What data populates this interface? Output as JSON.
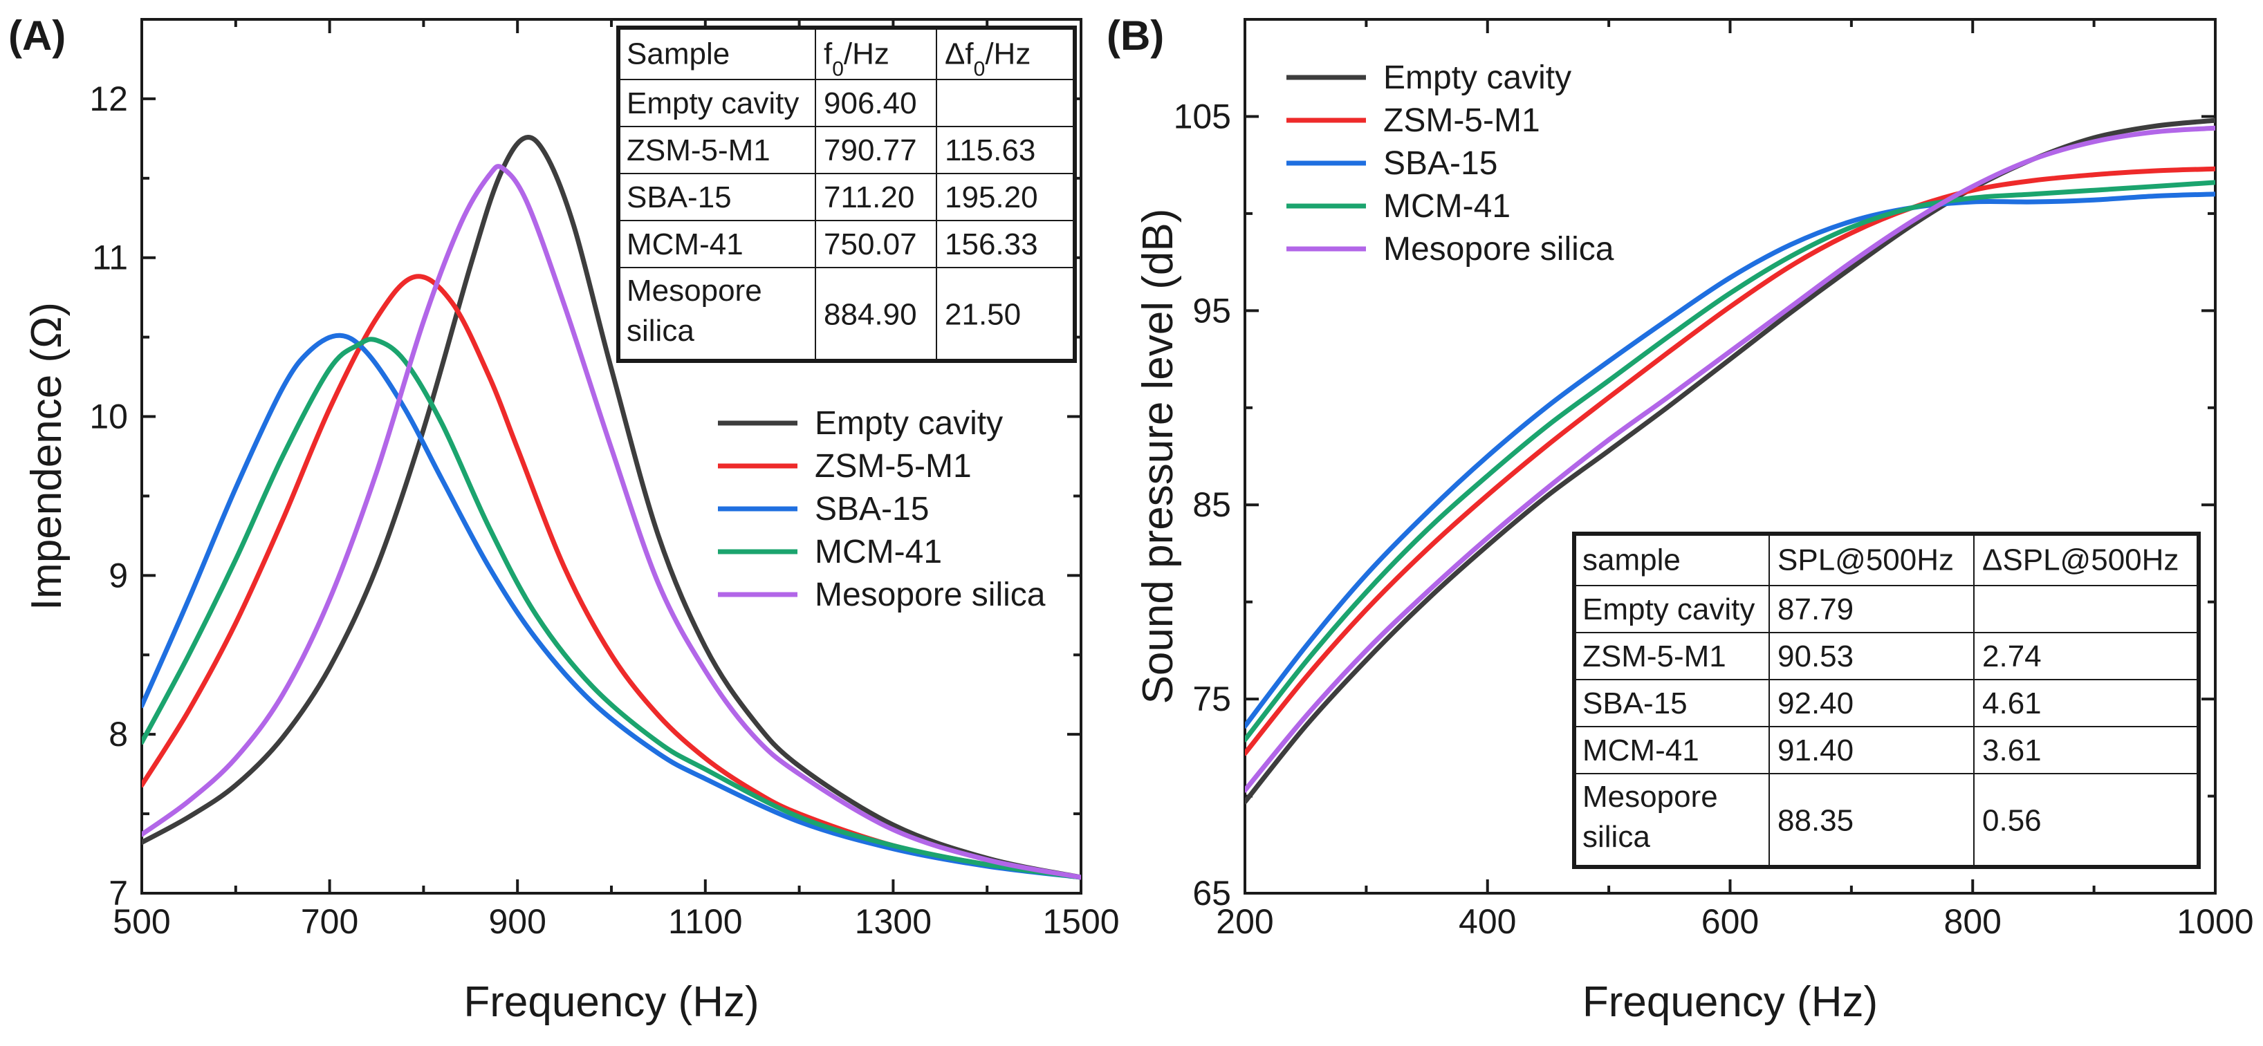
{
  "chart_data": [
    {
      "type": "line",
      "panel_label": "(A)",
      "xlabel": "Frequency (Hz)",
      "ylabel": "Impendence (Ω)",
      "xlim": [
        500,
        1500
      ],
      "ylim": [
        7,
        12.5
      ],
      "xticks": [
        500,
        700,
        900,
        1100,
        1300,
        1500
      ],
      "xtick_labels": [
        "500",
        "700",
        "900",
        "1100",
        "1300",
        "1500"
      ],
      "yticks": [
        7,
        8,
        9,
        10,
        11,
        12
      ],
      "ytick_labels": [
        "7",
        "8",
        "9",
        "10",
        "11",
        "12"
      ],
      "legend_position": "center-right",
      "series": [
        {
          "name": "Empty cavity",
          "color": "#3d3d3d",
          "x": [
            500,
            550,
            600,
            650,
            700,
            750,
            800,
            850,
            880,
            906.4,
            930,
            960,
            1000,
            1050,
            1100,
            1150,
            1200,
            1300,
            1400,
            1500
          ],
          "y": [
            7.32,
            7.48,
            7.68,
            7.98,
            8.42,
            9.05,
            9.92,
            10.95,
            11.5,
            11.75,
            11.65,
            11.2,
            10.3,
            9.25,
            8.55,
            8.1,
            7.8,
            7.43,
            7.22,
            7.1
          ]
        },
        {
          "name": "ZSM-5-M1",
          "color": "#ee2a2a",
          "x": [
            500,
            550,
            600,
            650,
            700,
            750,
            790.77,
            830,
            870,
            900,
            950,
            1000,
            1050,
            1100,
            1150,
            1200,
            1300,
            1400,
            1500
          ],
          "y": [
            7.68,
            8.15,
            8.7,
            9.35,
            10.05,
            10.62,
            10.88,
            10.72,
            10.25,
            9.8,
            9.05,
            8.5,
            8.12,
            7.85,
            7.65,
            7.5,
            7.3,
            7.18,
            7.1
          ]
        },
        {
          "name": "SBA-15",
          "color": "#1f6fe0",
          "x": [
            500,
            550,
            600,
            650,
            680,
            711.2,
            740,
            780,
            820,
            870,
            920,
            980,
            1050,
            1100,
            1200,
            1300,
            1400,
            1500
          ],
          "y": [
            8.18,
            8.85,
            9.55,
            10.18,
            10.42,
            10.51,
            10.4,
            10.05,
            9.6,
            9.05,
            8.6,
            8.2,
            7.88,
            7.72,
            7.45,
            7.28,
            7.17,
            7.1
          ]
        },
        {
          "name": "MCM-41",
          "color": "#1ba46e",
          "x": [
            500,
            550,
            600,
            650,
            700,
            730,
            750.07,
            780,
            820,
            870,
            920,
            980,
            1050,
            1100,
            1200,
            1300,
            1400,
            1500
          ],
          "y": [
            7.95,
            8.5,
            9.1,
            9.75,
            10.3,
            10.45,
            10.48,
            10.35,
            9.95,
            9.3,
            8.75,
            8.3,
            7.95,
            7.78,
            7.48,
            7.3,
            7.18,
            7.1
          ]
        },
        {
          "name": "Mesopore silica",
          "color": "#b266e8",
          "x": [
            500,
            550,
            600,
            650,
            700,
            750,
            800,
            840,
            870,
            884.9,
            910,
            950,
            1000,
            1050,
            1100,
            1150,
            1200,
            1300,
            1400,
            1500
          ],
          "y": [
            7.37,
            7.58,
            7.85,
            8.25,
            8.85,
            9.65,
            10.6,
            11.22,
            11.52,
            11.56,
            11.35,
            10.7,
            9.8,
            8.95,
            8.4,
            8.0,
            7.75,
            7.4,
            7.21,
            7.1
          ]
        }
      ],
      "table": {
        "headers": [
          "Sample",
          "f₀/Hz",
          "Δf₀/Hz"
        ],
        "rows": [
          [
            "Empty cavity",
            "906.40",
            ""
          ],
          [
            "ZSM-5-M1",
            "790.77",
            "115.63"
          ],
          [
            "SBA-15",
            "711.20",
            "195.20"
          ],
          [
            "MCM-41",
            "750.07",
            "156.33"
          ],
          [
            "Mesopore\nsilica",
            "884.90",
            "21.50"
          ]
        ]
      }
    },
    {
      "type": "line",
      "panel_label": "(B)",
      "xlabel": "Frequency (Hz)",
      "ylabel": "Sound pressure level (dB)",
      "xlim": [
        200,
        1000
      ],
      "ylim": [
        65,
        110
      ],
      "xticks": [
        200,
        400,
        600,
        800,
        1000
      ],
      "xtick_labels": [
        "200",
        "400",
        "600",
        "800",
        "1000"
      ],
      "yticks": [
        65,
        75,
        85,
        95,
        105
      ],
      "ytick_labels": [
        "65",
        "75",
        "85",
        "95",
        "105"
      ],
      "legend_position": "top-left",
      "series": [
        {
          "name": "Empty cavity",
          "color": "#3d3d3d",
          "x": [
            200,
            250,
            300,
            350,
            400,
            450,
            500,
            550,
            600,
            650,
            700,
            750,
            800,
            850,
            900,
            950,
            1000
          ],
          "y": [
            69.7,
            73.6,
            77.0,
            80.1,
            82.9,
            85.5,
            87.79,
            90.1,
            92.5,
            94.9,
            97.2,
            99.4,
            101.3,
            102.8,
            103.9,
            104.5,
            104.8
          ]
        },
        {
          "name": "ZSM-5-M1",
          "color": "#ee2a2a",
          "x": [
            200,
            250,
            300,
            350,
            400,
            450,
            500,
            550,
            600,
            650,
            700,
            750,
            800,
            850,
            900,
            950,
            1000
          ],
          "y": [
            72.2,
            76.1,
            79.6,
            82.7,
            85.5,
            88.1,
            90.53,
            92.9,
            95.2,
            97.3,
            99.0,
            100.3,
            101.2,
            101.7,
            102.0,
            102.2,
            102.3
          ]
        },
        {
          "name": "SBA-15",
          "color": "#1f6fe0",
          "x": [
            200,
            250,
            300,
            350,
            400,
            450,
            500,
            550,
            600,
            650,
            700,
            750,
            800,
            850,
            900,
            950,
            1000
          ],
          "y": [
            73.6,
            77.7,
            81.4,
            84.6,
            87.5,
            90.1,
            92.4,
            94.6,
            96.7,
            98.4,
            99.6,
            100.3,
            100.6,
            100.6,
            100.7,
            100.9,
            101.0
          ]
        },
        {
          "name": "MCM-41",
          "color": "#1ba46e",
          "x": [
            200,
            250,
            300,
            350,
            400,
            450,
            500,
            550,
            600,
            650,
            700,
            750,
            800,
            850,
            900,
            950,
            1000
          ],
          "y": [
            72.9,
            76.9,
            80.5,
            83.7,
            86.5,
            89.1,
            91.4,
            93.7,
            95.9,
            97.8,
            99.3,
            100.3,
            100.8,
            101.0,
            101.2,
            101.4,
            101.6
          ]
        },
        {
          "name": "Mesopore silica",
          "color": "#b266e8",
          "x": [
            200,
            250,
            300,
            350,
            400,
            450,
            500,
            550,
            600,
            650,
            700,
            750,
            800,
            850,
            900,
            950,
            1000
          ],
          "y": [
            70.3,
            74.1,
            77.5,
            80.5,
            83.3,
            85.9,
            88.35,
            90.6,
            92.9,
            95.2,
            97.5,
            99.6,
            101.4,
            102.8,
            103.7,
            104.2,
            104.4
          ]
        }
      ],
      "table": {
        "headers": [
          "sample",
          "SPL@500Hz",
          "ΔSPL@500Hz"
        ],
        "rows": [
          [
            "Empty cavity",
            "87.79",
            ""
          ],
          [
            "ZSM-5-M1",
            "90.53",
            "2.74"
          ],
          [
            "SBA-15",
            "92.40",
            "4.61"
          ],
          [
            "MCM-41",
            "91.40",
            "3.61"
          ],
          [
            "Mesopore\nsilica",
            "88.35",
            "0.56"
          ]
        ]
      }
    }
  ]
}
